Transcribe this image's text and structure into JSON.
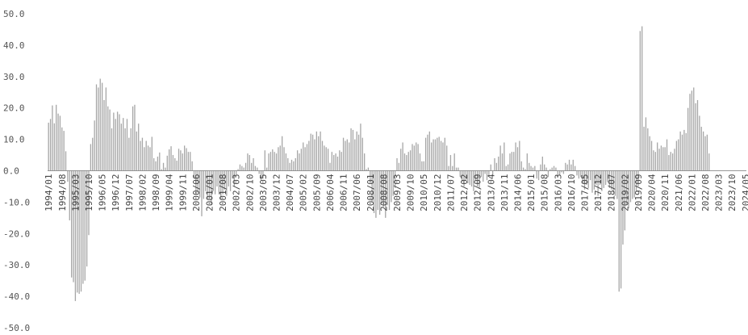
{
  "chart_data": {
    "type": "bar",
    "title": "",
    "xlabel": "",
    "ylabel": "",
    "ylim": [
      -50,
      50
    ],
    "yticks": [
      50,
      40,
      30,
      20,
      10,
      0,
      -10,
      -20,
      -30,
      -40,
      -50
    ],
    "ytick_labels": [
      "50.0",
      "40.0",
      "30.0",
      "20.0",
      "10.0",
      "0.0",
      "-10.0",
      "-20.0",
      "-30.0",
      "-40.0",
      "-50.0"
    ],
    "grid": false,
    "legend": "none",
    "bar_color": "#a6a6a6",
    "axis_color": "#777777",
    "start": "1994/01",
    "end": "2024/05",
    "x_tick_labels": [
      "1994/01",
      "1994/08",
      "1995/03",
      "1995/10",
      "1996/05",
      "1996/12",
      "1997/07",
      "1998/02",
      "1998/09",
      "1999/04",
      "1999/11",
      "2000/06",
      "2001/01",
      "2001/08",
      "2002/03",
      "2002/10",
      "2003/05",
      "2003/12",
      "2004/07",
      "2005/02",
      "2005/09",
      "2006/04",
      "2006/11",
      "2007/06",
      "2008/01",
      "2008/08",
      "2009/03",
      "2009/10",
      "2010/05",
      "2010/12",
      "2011/07",
      "2012/02",
      "2012/09",
      "2013/04",
      "2013/11",
      "2014/06",
      "2015/01",
      "2015/08",
      "2016/03",
      "2016/10",
      "2017/05",
      "2017/12",
      "2018/07",
      "2019/02",
      "2019/09",
      "2020/04",
      "2020/11",
      "2021/06",
      "2022/01",
      "2022/08",
      "2023/03",
      "2023/10",
      "2024/05"
    ],
    "values": [
      15.3,
      16.5,
      20.8,
      15.1,
      21.0,
      18.2,
      17.5,
      13.8,
      12.7,
      6.2,
      -3.5,
      -15.8,
      -34.0,
      -35.5,
      -41.5,
      -38.8,
      -39.2,
      -38.5,
      -36.0,
      -35.0,
      -30.5,
      -20.5,
      8.5,
      10.5,
      16.0,
      27.5,
      26.5,
      29.3,
      28.0,
      22.5,
      26.5,
      20.5,
      19.5,
      13.5,
      18.5,
      16.5,
      18.8,
      18.0,
      15.0,
      16.8,
      13.5,
      16.5,
      10.5,
      13.5,
      20.5,
      21.0,
      12.5,
      15.0,
      9.5,
      10.5,
      7.5,
      9.5,
      8.0,
      7.5,
      10.8,
      4.0,
      3.0,
      4.5,
      5.8,
      0.5,
      2.5,
      1.0,
      4.8,
      6.8,
      7.8,
      5.0,
      4.0,
      3.2,
      7.0,
      6.5,
      5.5,
      8.0,
      7.2,
      6.0,
      6.0,
      3.0,
      -2.5,
      -7.5,
      -7.0,
      -8.5,
      -14.5,
      -9.0,
      -6.5,
      -9.0,
      -8.5,
      -11.0,
      -6.5,
      -7.5,
      -5.0,
      -7.5,
      -9.0,
      -7.5,
      -6.0,
      -8.0,
      -5.0,
      -6.5,
      -2.5,
      -5.0,
      -1.5,
      0.5,
      2.0,
      1.5,
      1.0,
      2.5,
      5.5,
      5.0,
      2.5,
      4.0,
      1.5,
      1.0,
      -1.0,
      -3.0,
      -2.5,
      6.5,
      1.0,
      5.5,
      6.0,
      6.8,
      6.0,
      5.5,
      7.5,
      8.0,
      11.0,
      7.5,
      5.5,
      4.0,
      2.5,
      3.5,
      3.0,
      4.0,
      6.5,
      5.5,
      7.0,
      9.0,
      7.5,
      8.5,
      9.5,
      11.8,
      11.5,
      10.0,
      12.5,
      11.0,
      12.5,
      9.5,
      8.0,
      7.5,
      7.0,
      2.5,
      6.0,
      5.0,
      5.5,
      4.5,
      6.5,
      6.0,
      10.5,
      9.5,
      10.0,
      9.0,
      13.5,
      13.0,
      10.0,
      12.5,
      11.5,
      15.0,
      10.5,
      5.5,
      0.5,
      1.0,
      -3.5,
      -10.0,
      -13.5,
      -15.0,
      -12.5,
      -14.0,
      -10.5,
      -11.5,
      -15.0,
      -11.0,
      -12.5,
      -10.0,
      -8.0,
      -5.5,
      4.0,
      2.5,
      7.0,
      9.0,
      5.5,
      5.0,
      6.0,
      6.5,
      8.5,
      8.0,
      9.0,
      8.5,
      5.5,
      3.0,
      3.0,
      10.5,
      11.5,
      12.5,
      9.0,
      10.0,
      10.0,
      10.5,
      10.8,
      9.5,
      9.0,
      10.5,
      8.0,
      1.5,
      5.0,
      1.5,
      5.5,
      1.0,
      1.0,
      -2.0,
      -3.5,
      -5.0,
      -3.0,
      -4.0,
      -4.5,
      -5.0,
      -6.5,
      -3.0,
      -5.0,
      -5.5,
      -2.0,
      -3.5,
      -1.0,
      -3.0,
      -1.5,
      2.0,
      -1.5,
      4.0,
      2.5,
      4.5,
      8.0,
      5.5,
      9.0,
      1.5,
      2.0,
      5.5,
      6.0,
      6.0,
      9.0,
      7.5,
      9.5,
      3.0,
      1.0,
      0.5,
      5.5,
      2.5,
      1.5,
      1.0,
      1.5,
      -2.5,
      -3.0,
      2.0,
      4.5,
      2.0,
      1.0,
      -2.0,
      0.5,
      1.0,
      1.5,
      1.0,
      -2.0,
      -1.5,
      -0.5,
      -1.0,
      2.5,
      2.0,
      3.5,
      2.0,
      3.5,
      1.5,
      -1.5,
      -2.5,
      -2.0,
      -4.0,
      -6.0,
      -4.5,
      -5.5,
      -3.0,
      -7.0,
      -6.0,
      -4.5,
      -8.0,
      -4.5,
      -6.5,
      -5.5,
      -4.5,
      -3.5,
      -5.5,
      -6.0,
      -7.0,
      -8.0,
      -9.0,
      -38.5,
      -37.5,
      -23.5,
      -19.0,
      -11.0,
      -12.0,
      -10.0,
      -9.0,
      -8.5,
      -6.5,
      -5.0,
      44.5,
      46.0,
      14.0,
      17.0,
      13.5,
      11.0,
      9.5,
      6.5,
      6.0,
      9.0,
      7.0,
      8.0,
      7.5,
      7.5,
      10.0,
      5.0,
      6.0,
      5.5,
      7.0,
      9.5,
      10.0,
      12.5,
      11.5,
      13.0,
      12.0,
      20.0,
      24.5,
      25.5,
      26.5,
      21.5,
      22.5,
      17.5,
      14.0,
      12.5,
      11.0,
      11.5,
      5.5
    ]
  }
}
